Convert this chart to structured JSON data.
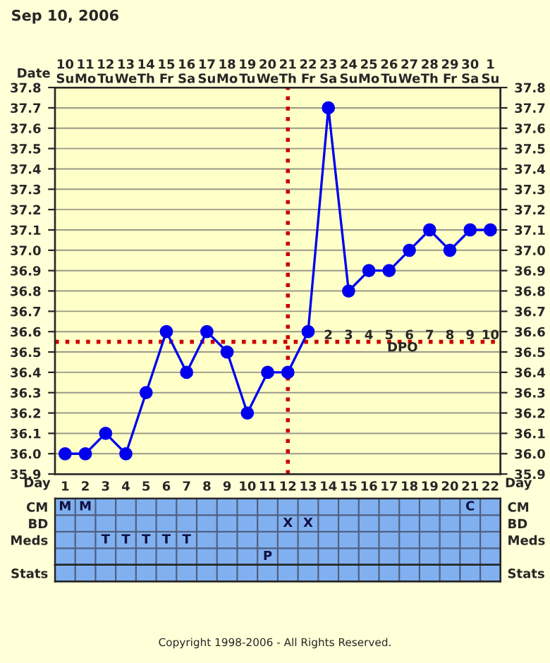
{
  "chart_data": [
    {
      "type": "line",
      "title": "Sep 10, 2006",
      "xlabel": "Day",
      "x2label": "Date",
      "x": [
        1,
        2,
        3,
        4,
        5,
        6,
        7,
        8,
        9,
        10,
        11,
        12,
        13,
        14,
        15,
        16,
        17,
        18,
        19,
        20,
        21,
        22
      ],
      "series": [
        {
          "color": "#0000ee",
          "values": [
            36.0,
            36.0,
            36.1,
            36.0,
            36.3,
            36.6,
            36.4,
            36.6,
            36.5,
            36.2,
            36.4,
            36.4,
            36.6,
            37.7,
            36.8,
            36.9,
            36.9,
            37.0,
            37.1,
            37.0,
            37.1,
            37.1
          ]
        }
      ],
      "xlim": [
        0.5,
        22.5
      ],
      "xticks": [
        1,
        2,
        3,
        4,
        5,
        6,
        7,
        8,
        9,
        10,
        11,
        12,
        13,
        14,
        15,
        16,
        17,
        18,
        19,
        20,
        21,
        22
      ],
      "x2lim": [
        "2006-09-09T12:00",
        "2006-10-01T12:00"
      ],
      "x2ticks": [
        {
          "value": "2006-09-10",
          "label": "10\nSu"
        },
        {
          "value": "2006-09-11",
          "label": "11\nMo"
        },
        {
          "value": "2006-09-12",
          "label": "12\nTu"
        },
        {
          "value": "2006-09-13",
          "label": "13\nWe"
        },
        {
          "value": "2006-09-14",
          "label": "14\nTh"
        },
        {
          "value": "2006-09-15",
          "label": "15\nFr"
        },
        {
          "value": "2006-09-16",
          "label": "16\nSa"
        },
        {
          "value": "2006-09-17",
          "label": "17\nSu"
        },
        {
          "value": "2006-09-18",
          "label": "18\nMo"
        },
        {
          "value": "2006-09-19",
          "label": "19\nTu"
        },
        {
          "value": "2006-09-20",
          "label": "20\nWe"
        },
        {
          "value": "2006-09-21",
          "label": "21\nTh"
        },
        {
          "value": "2006-09-22",
          "label": "22\nFr"
        },
        {
          "value": "2006-09-23",
          "label": "23\nSa"
        },
        {
          "value": "2006-09-24",
          "label": "24\nSu"
        },
        {
          "value": "2006-09-25",
          "label": "25\nMo"
        },
        {
          "value": "2006-09-26",
          "label": "26\nTu"
        },
        {
          "value": "2006-09-27",
          "label": "27\nWe"
        },
        {
          "value": "2006-09-28",
          "label": "28\nTh"
        },
        {
          "value": "2006-09-29",
          "label": "29\nFr"
        },
        {
          "value": "2006-09-30",
          "label": "30\nSa"
        },
        {
          "value": "2006-10-01",
          "label": "1\nSu"
        }
      ],
      "ylim": [
        35.9,
        37.8
      ],
      "yticks": [
        35.9,
        {
          "value": 36.0,
          "label": "36.0"
        },
        36.1,
        36.2,
        36.3,
        36.4,
        36.5,
        36.6,
        36.7,
        36.8,
        36.9,
        {
          "value": 37.0,
          "label": "37.0"
        },
        37.1,
        37.2,
        37.3,
        37.4,
        37.5,
        37.6,
        37.7,
        37.8
      ],
      "y2lim": [
        35.9,
        37.8
      ],
      "y2ticks": [
        35.9,
        {
          "value": 36.0,
          "label": "36.0"
        },
        36.1,
        36.2,
        36.3,
        36.4,
        36.5,
        36.6,
        36.7,
        36.8,
        36.9,
        {
          "value": 37.0,
          "label": "37.0"
        },
        37.1,
        37.2,
        37.3,
        37.4,
        37.5,
        37.6,
        37.7,
        37.8
      ],
      "grid": true,
      "marker": "circle",
      "line_style": "solid",
      "ref_lines": [
        {
          "axis": "y",
          "value": 36.55,
          "color": "#cc0000",
          "line_style": "dotted",
          "label": "DPO"
        },
        {
          "axis": "x",
          "value": 12,
          "color": "#cc0000",
          "line_style": "dotted"
        }
      ],
      "annotations": [
        {
          "text": "2",
          "x": 14,
          "y": 36.55
        },
        {
          "text": "3",
          "x": 15,
          "y": 36.55
        },
        {
          "text": "4",
          "x": 16,
          "y": 36.55
        },
        {
          "text": "5",
          "x": 17,
          "y": 36.55
        },
        {
          "text": "6",
          "x": 18,
          "y": 36.55
        },
        {
          "text": "7",
          "x": 19,
          "y": 36.55
        },
        {
          "text": "8",
          "x": 20,
          "y": 36.55
        },
        {
          "text": "9",
          "x": 21,
          "y": 36.55
        },
        {
          "text": "10",
          "x": 22,
          "y": 36.55
        }
      ]
    },
    {
      "type": "other",
      "categories": [
        null,
        null,
        null,
        null,
        null,
        null,
        null,
        null,
        null,
        null,
        null,
        null,
        null,
        null,
        null,
        null,
        null,
        null,
        null,
        null,
        null,
        null
      ],
      "y_categories": [
        "CM",
        "BD",
        "Meds",
        null
      ],
      "y2_categories": [
        "CM",
        "BD",
        "Meds",
        null
      ],
      "cell_labels": [
        [
          "M",
          "M",
          null,
          null,
          null,
          null,
          null,
          null,
          null,
          null,
          null,
          null,
          null,
          null,
          null,
          null,
          null,
          null,
          null,
          null,
          "C",
          null
        ],
        [
          null,
          null,
          null,
          null,
          null,
          null,
          null,
          null,
          null,
          null,
          null,
          "X",
          "X",
          null,
          null,
          null,
          null,
          null,
          null,
          null,
          null,
          null
        ],
        [
          null,
          null,
          "T",
          "T",
          "T",
          "T",
          "T",
          null,
          null,
          null,
          null,
          null,
          null,
          null,
          null,
          null,
          null,
          null,
          null,
          null,
          null,
          null
        ],
        [
          null,
          null,
          null,
          null,
          null,
          null,
          null,
          null,
          null,
          null,
          "P",
          null,
          null,
          null,
          null,
          null,
          null,
          null,
          null,
          null,
          null,
          null
        ]
      ]
    },
    {
      "type": "other",
      "categories": [
        null,
        null,
        null,
        null,
        null,
        null,
        null,
        null,
        null,
        null,
        null,
        null,
        null,
        null,
        null,
        null,
        null,
        null,
        null,
        null,
        null,
        null
      ],
      "y_categories": [
        "Stats"
      ],
      "y2_categories": [
        "Stats"
      ],
      "annotations": [
        "Copyright 1998-2006 - All Rights Reserved."
      ]
    }
  ]
}
